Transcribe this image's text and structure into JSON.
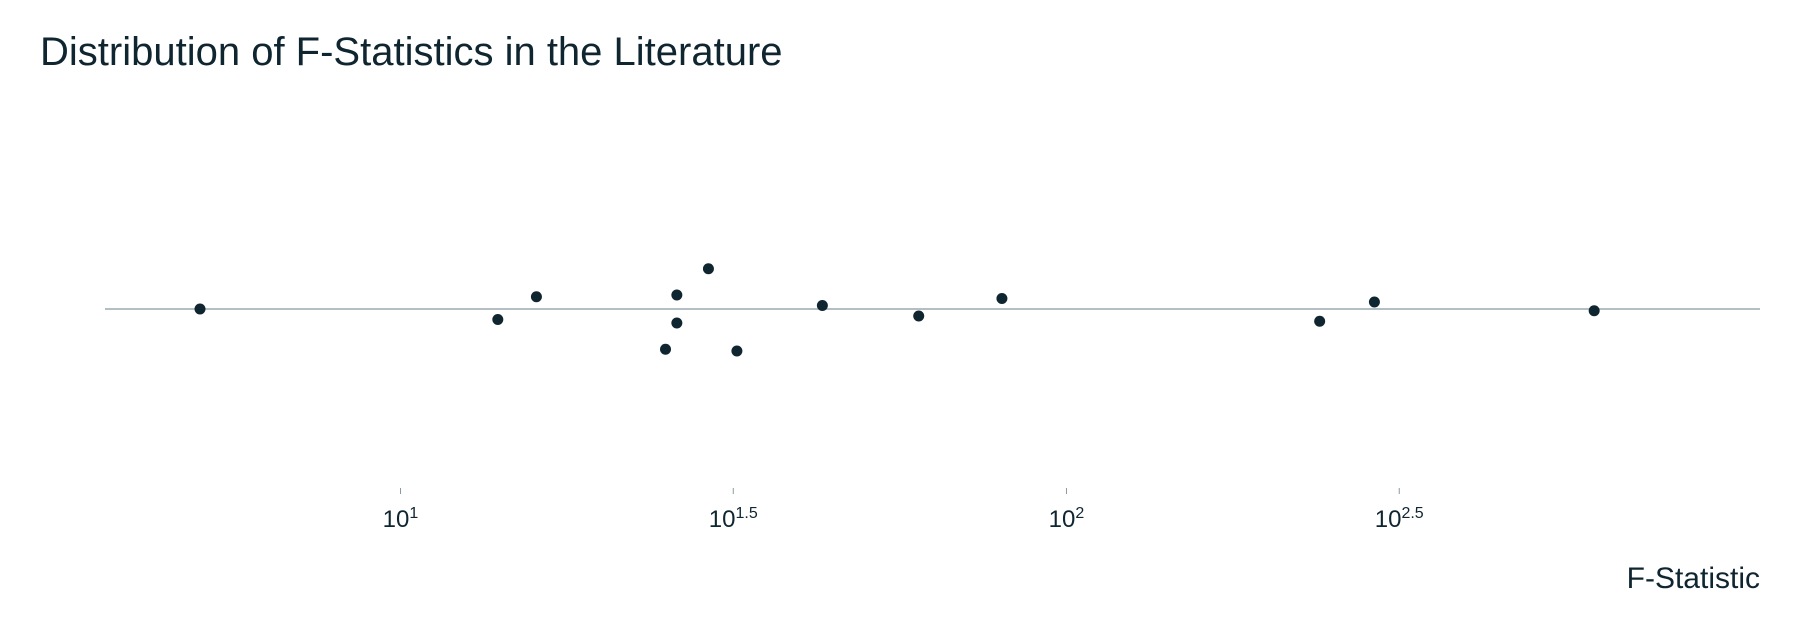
{
  "chart_data": {
    "type": "scatter",
    "title": "Distribution of F-Statistics in the Literature",
    "xlabel": "F-Statistic",
    "ylabel": "",
    "x_scale": "log10",
    "xlim": [
      3.6,
      1100
    ],
    "ylim": [
      -1,
      1
    ],
    "grid": false,
    "baseline": {
      "y": 0,
      "color": "#9aaab2"
    },
    "marker_color": "#0f2530",
    "x_ticks": [
      {
        "value": 10,
        "base": "10",
        "exponent": "1"
      },
      {
        "value": 31.6,
        "base": "10",
        "exponent": "1.5"
      },
      {
        "value": 100,
        "base": "10",
        "exponent": "2"
      },
      {
        "value": 316,
        "base": "10",
        "exponent": "2.5"
      }
    ],
    "points": [
      {
        "x": 5.0,
        "y": 0.0
      },
      {
        "x": 14.0,
        "y": -0.06
      },
      {
        "x": 16.0,
        "y": 0.07
      },
      {
        "x": 25.0,
        "y": -0.23
      },
      {
        "x": 26.0,
        "y": 0.08
      },
      {
        "x": 26.0,
        "y": -0.08
      },
      {
        "x": 29.0,
        "y": 0.23
      },
      {
        "x": 32.0,
        "y": -0.24
      },
      {
        "x": 43.0,
        "y": 0.02
      },
      {
        "x": 60.0,
        "y": -0.04
      },
      {
        "x": 80.0,
        "y": 0.06
      },
      {
        "x": 240.0,
        "y": -0.07
      },
      {
        "x": 290.0,
        "y": 0.04
      },
      {
        "x": 620.0,
        "y": -0.01
      }
    ]
  }
}
